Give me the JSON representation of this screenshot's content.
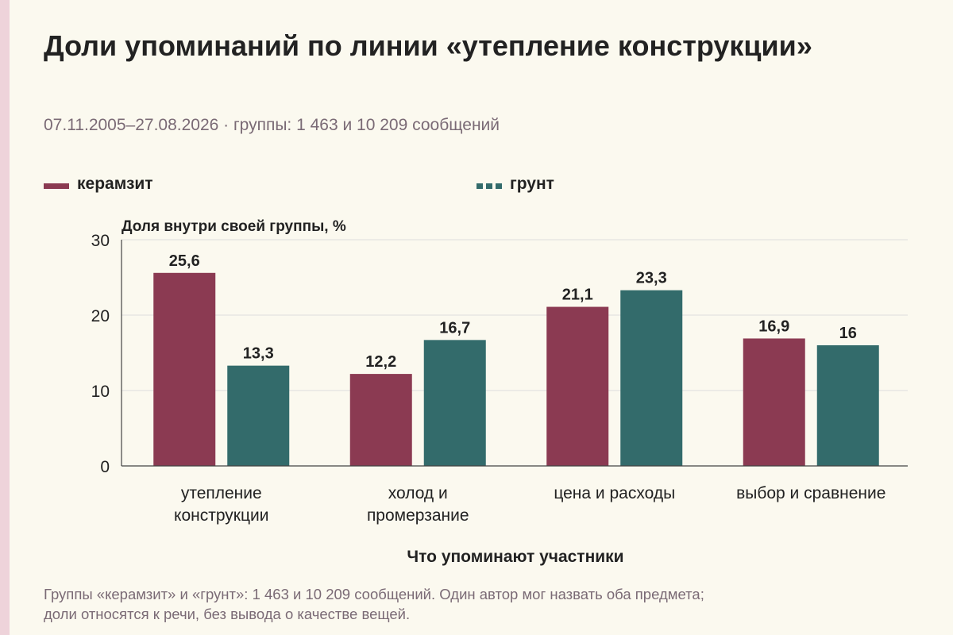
{
  "colors": {
    "series_a": "#8b3a52",
    "series_b": "#336b6b",
    "background": "#fbf9ef",
    "accent_stripe": "#eed3da",
    "gridline": "#dddddd",
    "axis": "#444444",
    "muted_text": "#7a6a75"
  },
  "header": {
    "title": "Доли упоминаний по линии «утепление конструкции»",
    "subtitle": "07.11.2005–27.08.2026 · группы: 1 463 и 10 209 сообщений"
  },
  "footnote": {
    "line1": "Группы «керамзит» и «грунт»: 1 463 и 10 209 сообщений. Один автор мог назвать оба предмета;",
    "line2": "доли относятся к речи, без вывода о качестве вещей."
  },
  "chart_data": {
    "type": "bar",
    "title": "Доли упоминаний по линии «утепление конструкции»",
    "subtitle": "07.11.2005–27.08.2026 · группы: 1 463 и 10 209 сообщений",
    "xlabel": "Что упоминают участники",
    "ylabel": "Доля внутри своей группы, %",
    "ylim": [
      0,
      30
    ],
    "yticks": [
      "0",
      "10",
      "20",
      "30"
    ],
    "grid": true,
    "legend_position": "top",
    "categories": [
      [
        "утепление",
        "конструкции"
      ],
      [
        "холод и",
        "промерзание"
      ],
      [
        "цена и расходы"
      ],
      [
        "выбор и сравнение"
      ]
    ],
    "series": [
      {
        "name": "керамзит",
        "values": [
          25.6,
          12.2,
          21.1,
          16.9
        ],
        "labels": [
          "25,6",
          "12,2",
          "21,1",
          "16,9"
        ]
      },
      {
        "name": "грунт",
        "values": [
          13.3,
          16.7,
          23.3,
          16.0
        ],
        "labels": [
          "13,3",
          "16,7",
          "23,3",
          "16"
        ]
      }
    ]
  }
}
